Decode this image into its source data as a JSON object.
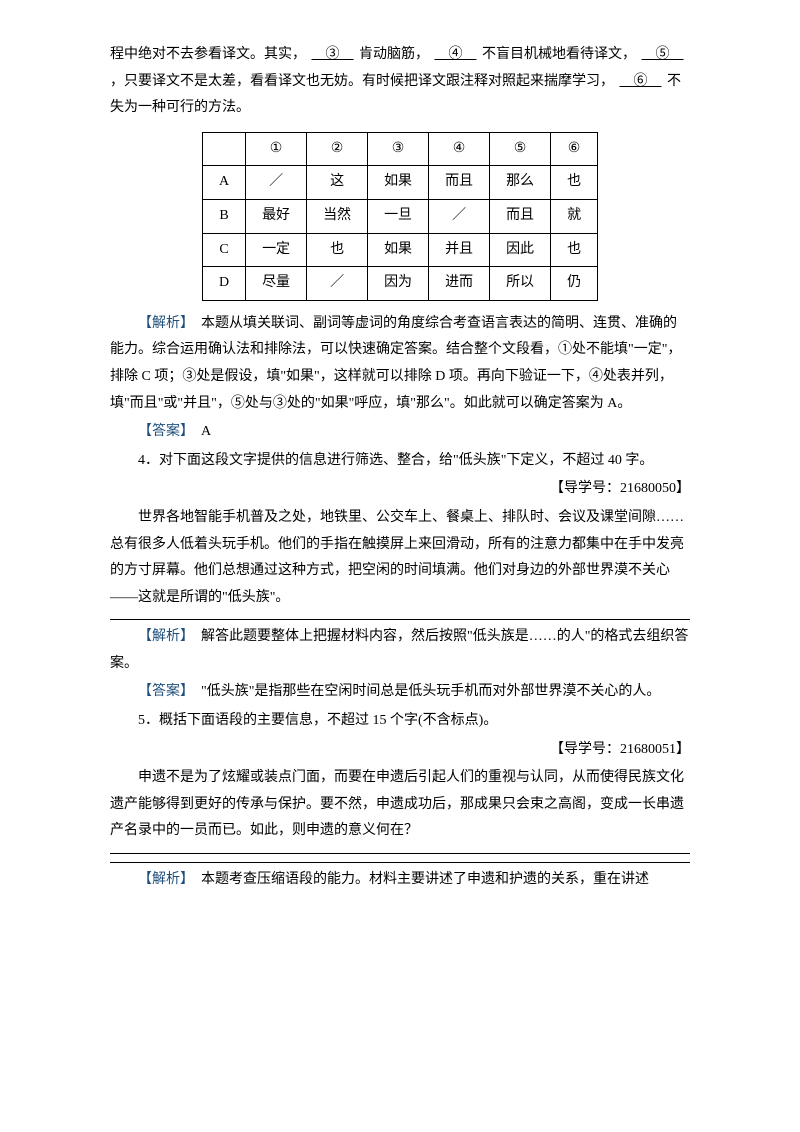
{
  "intro": {
    "line1_pre": "程中绝对不去参看译文。其实，",
    "blank3": "③",
    "line1_mid1": "肯动脑筋，",
    "blank4": "④",
    "line1_mid2": "不盲目机械地看待译文，",
    "blank5": "⑤",
    "line2_mid": "，只要译文不是太差，看看译文也无妨。有时候把译文跟注释对照起来揣摩学习，",
    "blank6": "⑥",
    "line3_end": "不失为一种可行的方法。"
  },
  "table": {
    "headers": [
      "",
      "①",
      "②",
      "③",
      "④",
      "⑤",
      "⑥"
    ],
    "rows": [
      [
        "A",
        "／",
        "这",
        "如果",
        "而且",
        "那么",
        "也"
      ],
      [
        "B",
        "最好",
        "当然",
        "一旦",
        "／",
        "而且",
        "就"
      ],
      [
        "C",
        "一定",
        "也",
        "如果",
        "并且",
        "因此",
        "也"
      ],
      [
        "D",
        "尽量",
        "／",
        "因为",
        "进而",
        "所以",
        "仍"
      ]
    ]
  },
  "q3": {
    "analysis_label": "【解析】",
    "analysis_text": "本题从填关联词、副词等虚词的角度综合考查语言表达的简明、连贯、准确的能力。综合运用确认法和排除法，可以快速确定答案。结合整个文段看，①处不能填\"一定\"，排除 C 项；③处是假设，填\"如果\"，这样就可以排除 D 项。再向下验证一下，④处表并列，填\"而且\"或\"并且\"，⑤处与③处的\"如果\"呼应，填\"那么\"。如此就可以确定答案为 A。",
    "answer_label": "【答案】",
    "answer_text": "A"
  },
  "q4": {
    "number": "4．",
    "prompt": "对下面这段文字提供的信息进行筛选、整合，给\"低头族\"下定义，不超过 40 字。",
    "ref": "【导学号：21680050】",
    "passage": "世界各地智能手机普及之处，地铁里、公交车上、餐桌上、排队时、会议及课堂间隙……总有很多人低着头玩手机。他们的手指在触摸屏上来回滑动，所有的注意力都集中在手中发亮的方寸屏幕。他们总想通过这种方式，把空闲的时间填满。他们对身边的外部世界漠不关心——这就是所谓的\"低头族\"。",
    "analysis_label": "【解析】",
    "analysis_text": "解答此题要整体上把握材料内容，然后按照\"低头族是……的人\"的格式去组织答案。",
    "answer_label": "【答案】",
    "answer_text": "\"低头族\"是指那些在空闲时间总是低头玩手机而对外部世界漠不关心的人。"
  },
  "q5": {
    "number": "5．",
    "prompt": "概括下面语段的主要信息，不超过 15 个字(不含标点)。",
    "ref": "【导学号：21680051】",
    "passage": "申遗不是为了炫耀或装点门面，而要在申遗后引起人们的重视与认同，从而使得民族文化遗产能够得到更好的传承与保护。要不然，申遗成功后，那成果只会束之高阁，变成一长串遗产名录中的一员而已。如此，则申遗的意义何在？",
    "analysis_label": "【解析】",
    "analysis_text": "本题考查压缩语段的能力。材料主要讲述了申遗和护遗的关系，重在讲述"
  }
}
